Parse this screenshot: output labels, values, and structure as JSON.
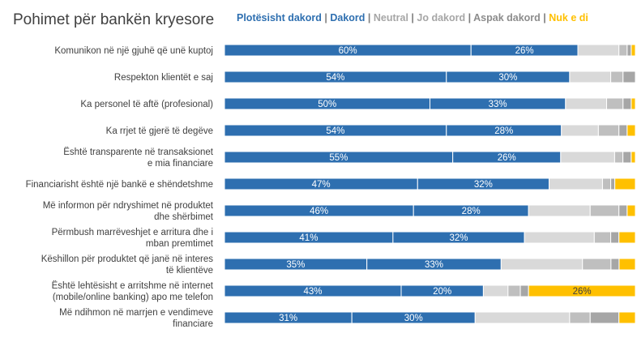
{
  "chart_data": {
    "type": "bar",
    "stacked": true,
    "orientation": "horizontal",
    "title": "Pohimet për bankën kryesore",
    "legend_position": "top",
    "legend": [
      {
        "name": "Plotësisht dakord",
        "color": "#2e6fb0"
      },
      {
        "name": "Dakord",
        "color": "#2e6fb0"
      },
      {
        "name": "Neutral",
        "color": "#a6a6a6"
      },
      {
        "name": "Jo dakord",
        "color": "#a6a6a6"
      },
      {
        "name": "Aspak dakord",
        "color": "#8c8c8c"
      },
      {
        "name": "Nuk e di",
        "color": "#ffc000"
      }
    ],
    "legend_separator": "|",
    "categories": [
      "Komunikon në një gjuhë që unë kuptoj",
      "Respekton klientët e saj",
      "Ka personel të aftë (profesional)",
      "Ka rrjet të gjerë të degëve",
      "Është transparente në transaksionet e mia financiare",
      "Financiarisht është një bankë e shëndetshme",
      "Më informon për ndryshimet në produktet dhe shërbimet",
      "Përmbush marrëveshjet e arritura dhe i mban premtimet",
      "Këshillon për produktet që janë në interes të klientëve",
      "Është lehtësisht e arritshme në internet (mobile/online banking) apo me telefon",
      "Më ndihmon në marrjen e vendimeve financiare"
    ],
    "category_lines": [
      [
        "Komunikon në një gjuhë që unë kuptoj"
      ],
      [
        "Respekton klientët e saj"
      ],
      [
        "Ka personel të aftë (profesional)"
      ],
      [
        "Ka rrjet të gjerë të degëve"
      ],
      [
        "Është transparente në transaksionet",
        "e mia financiare"
      ],
      [
        "Financiarisht është një bankë e shëndetshme"
      ],
      [
        "Më informon për ndryshimet në produktet",
        "dhe shërbimet"
      ],
      [
        "Përmbush marrëveshjet e arritura dhe i",
        "mban premtimet"
      ],
      [
        "Këshillon për produktet që janë në interes",
        "të klientëve"
      ],
      [
        "Është lehtësisht e arritshme në internet",
        "(mobile/online banking) apo me telefon"
      ],
      [
        "Më ndihmon në marrjen e vendimeve",
        "financiare"
      ]
    ],
    "series": [
      {
        "name": "Plotësisht dakord",
        "color": "#2e6fb0",
        "labeled": true,
        "values": [
          60,
          54,
          50,
          54,
          55,
          47,
          46,
          41,
          35,
          43,
          31
        ]
      },
      {
        "name": "Dakord",
        "color": "#2e6fb0",
        "labeled": true,
        "values": [
          26,
          30,
          33,
          28,
          26,
          32,
          28,
          32,
          33,
          20,
          30
        ]
      },
      {
        "name": "Neutral",
        "color": "#d9d9d9",
        "labeled": false,
        "values": [
          10,
          10,
          10,
          9,
          13,
          13,
          15,
          17,
          20,
          6,
          23
        ]
      },
      {
        "name": "Jo dakord",
        "color": "#bfbfbf",
        "labeled": false,
        "values": [
          2,
          3,
          4,
          5,
          2,
          2,
          7,
          4,
          7,
          3,
          5
        ]
      },
      {
        "name": "Aspak dakord",
        "color": "#a6a6a6",
        "labeled": false,
        "values": [
          1,
          3,
          2,
          2,
          2,
          1,
          2,
          2,
          2,
          2,
          7
        ]
      },
      {
        "name": "Nuk e di",
        "color": "#ffc000",
        "labeled_indices": [
          9
        ],
        "values": [
          1,
          0,
          1,
          2,
          1,
          5,
          2,
          4,
          4,
          26,
          4
        ]
      }
    ],
    "data_labels": [
      [
        "60%",
        "26%"
      ],
      [
        "54%",
        "30%"
      ],
      [
        "50%",
        "33%"
      ],
      [
        "54%",
        "28%"
      ],
      [
        "55%",
        "26%"
      ],
      [
        "47%",
        "32%"
      ],
      [
        "46%",
        "28%"
      ],
      [
        "41%",
        "32%"
      ],
      [
        "35%",
        "33%"
      ],
      [
        "43%",
        "20%",
        "26%"
      ],
      [
        "31%",
        "30%"
      ]
    ],
    "xlim": [
      0,
      100
    ]
  }
}
